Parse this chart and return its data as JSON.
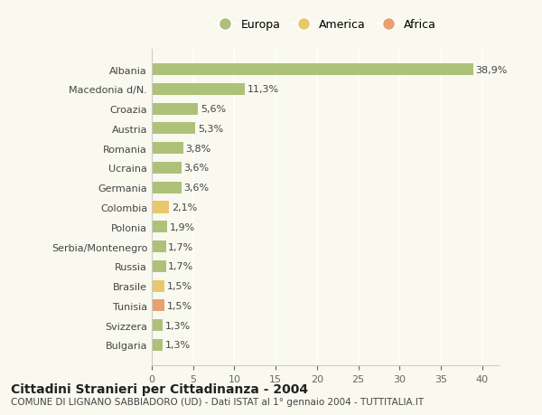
{
  "categories": [
    "Bulgaria",
    "Svizzera",
    "Tunisia",
    "Brasile",
    "Russia",
    "Serbia/Montenegro",
    "Polonia",
    "Colombia",
    "Germania",
    "Ucraina",
    "Romania",
    "Austria",
    "Croazia",
    "Macedonia d/N.",
    "Albania"
  ],
  "values": [
    1.3,
    1.3,
    1.5,
    1.5,
    1.7,
    1.7,
    1.9,
    2.1,
    3.6,
    3.6,
    3.8,
    5.3,
    5.6,
    11.3,
    38.9
  ],
  "labels": [
    "1,3%",
    "1,3%",
    "1,5%",
    "1,5%",
    "1,7%",
    "1,7%",
    "1,9%",
    "2,1%",
    "3,6%",
    "3,6%",
    "3,8%",
    "5,3%",
    "5,6%",
    "11,3%",
    "38,9%"
  ],
  "continent": [
    "Europa",
    "Europa",
    "Africa",
    "America",
    "Europa",
    "Europa",
    "Europa",
    "America",
    "Europa",
    "Europa",
    "Europa",
    "Europa",
    "Europa",
    "Europa",
    "Europa"
  ],
  "colors": {
    "Europa": "#adc178",
    "America": "#e8c86a",
    "Africa": "#e8a070"
  },
  "legend": [
    {
      "label": "Europa",
      "color": "#adc178"
    },
    {
      "label": "America",
      "color": "#e8c86a"
    },
    {
      "label": "Africa",
      "color": "#e8a070"
    }
  ],
  "xlim": [
    0,
    42
  ],
  "xticks": [
    0,
    5,
    10,
    15,
    20,
    25,
    30,
    35,
    40
  ],
  "title": "Cittadini Stranieri per Cittadinanza - 2004",
  "subtitle": "COMUNE DI LIGNANO SABBIADORO (UD) - Dati ISTAT al 1° gennaio 2004 - TUTTITALIA.IT",
  "background_color": "#f9f9f0",
  "grid_color": "#ffffff",
  "bar_height": 0.6
}
